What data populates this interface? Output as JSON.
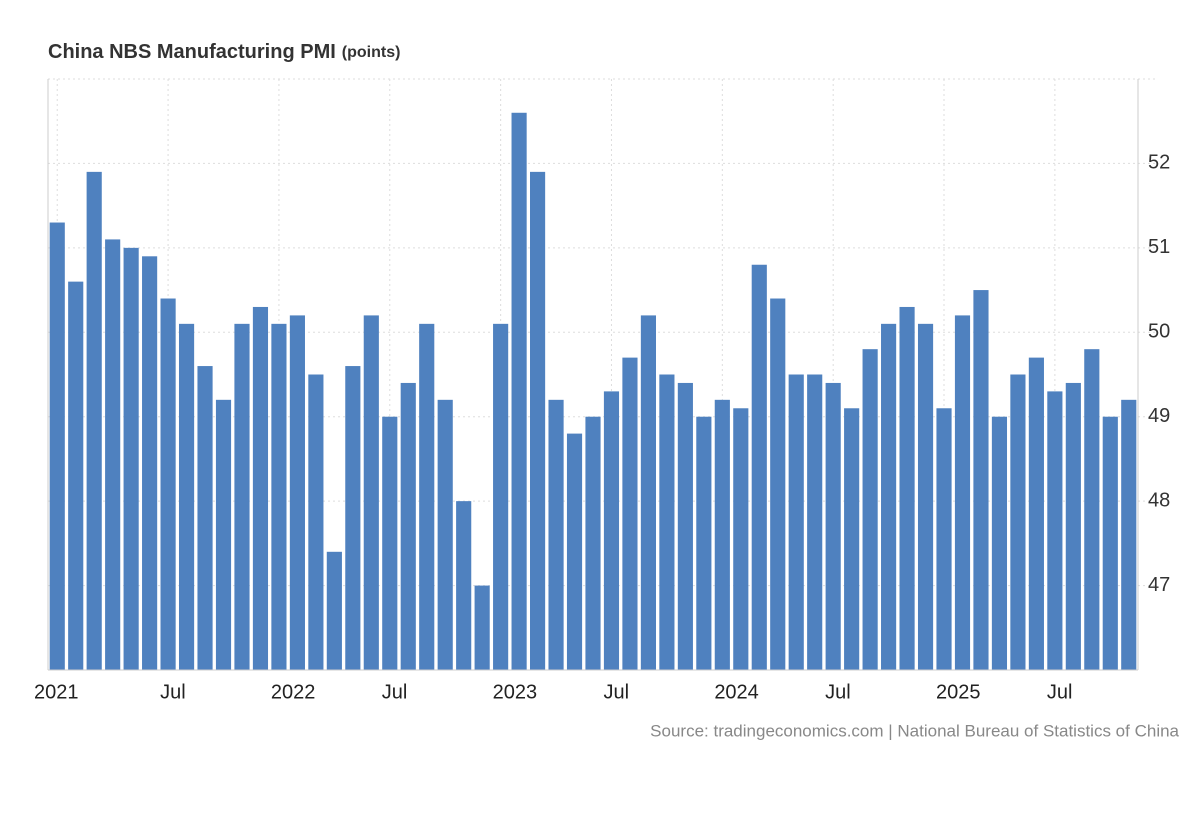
{
  "chart_data": {
    "type": "bar",
    "title": "China NBS Manufacturing PMI",
    "unit": "(points)",
    "source": "Source: tradingeconomics.com | National Bureau of Statistics of China",
    "categories": [
      "2021",
      null,
      null,
      null,
      null,
      null,
      "Jul",
      null,
      null,
      null,
      null,
      null,
      "2022",
      null,
      null,
      null,
      null,
      null,
      "Jul",
      null,
      null,
      null,
      null,
      null,
      "2023",
      null,
      null,
      null,
      null,
      null,
      "Jul",
      null,
      null,
      null,
      null,
      null,
      "2024",
      null,
      null,
      null,
      null,
      null,
      "Jul",
      null,
      null,
      null,
      null,
      null,
      "2025",
      null,
      null,
      null,
      null,
      null,
      "Jul",
      null,
      null,
      null,
      null
    ],
    "values": [
      51.3,
      50.6,
      51.9,
      51.1,
      51.0,
      50.9,
      50.4,
      50.1,
      49.6,
      49.2,
      50.1,
      50.3,
      50.1,
      50.2,
      49.5,
      47.4,
      49.6,
      50.2,
      49.0,
      49.4,
      50.1,
      49.2,
      48.0,
      47.0,
      50.1,
      52.6,
      51.9,
      49.2,
      48.8,
      49.0,
      49.3,
      49.7,
      50.2,
      49.5,
      49.4,
      49.0,
      49.2,
      49.1,
      50.8,
      50.4,
      49.5,
      49.5,
      49.4,
      49.1,
      49.8,
      50.1,
      50.3,
      50.1,
      49.1,
      50.2,
      50.5,
      49.0,
      49.5,
      49.7,
      49.3,
      49.4,
      49.8,
      49.0,
      49.2
    ],
    "color": "#4f81bf",
    "ylim": [
      46,
      53
    ],
    "yticks": [
      47,
      48,
      49,
      50,
      51,
      52
    ],
    "grid": true
  }
}
